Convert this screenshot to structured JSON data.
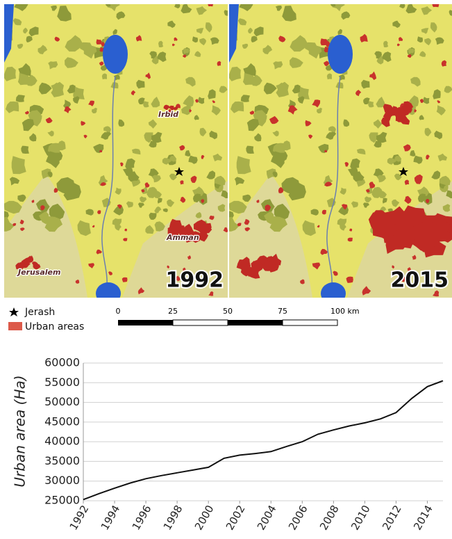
{
  "maps": [
    {
      "year": "1992",
      "labels": [
        "Irbid",
        "Amman",
        "Jerusalem"
      ]
    },
    {
      "year": "2015"
    }
  ],
  "legend": [
    "Jerash",
    "Urban areas"
  ],
  "scale_bar": [
    "0",
    "25",
    "50",
    "75",
    "100 km"
  ],
  "chart_data": {
    "type": "line",
    "ylabel": "Urban area (Ha)",
    "x": [
      1992,
      1993,
      1994,
      1995,
      1996,
      1997,
      1998,
      1999,
      2000,
      2001,
      2002,
      2003,
      2004,
      2005,
      2006,
      2007,
      2008,
      2009,
      2010,
      2011,
      2012,
      2013,
      2014,
      2015
    ],
    "values": [
      25300,
      26800,
      28200,
      29500,
      30600,
      31400,
      32100,
      32800,
      33500,
      35800,
      36600,
      37000,
      37500,
      38800,
      40000,
      41900,
      43000,
      44000,
      44800,
      45800,
      47400,
      51000,
      54000,
      55500
    ],
    "color": "#111111",
    "xlim": [
      1992,
      2015
    ],
    "xticks": [
      1992,
      1994,
      1996,
      1998,
      2000,
      2002,
      2004,
      2006,
      2008,
      2010,
      2012,
      2014
    ],
    "ylim": [
      25000,
      60000
    ],
    "yticks": [
      25000,
      30000,
      35000,
      40000,
      45000,
      50000,
      55000,
      60000
    ],
    "grid": true
  }
}
